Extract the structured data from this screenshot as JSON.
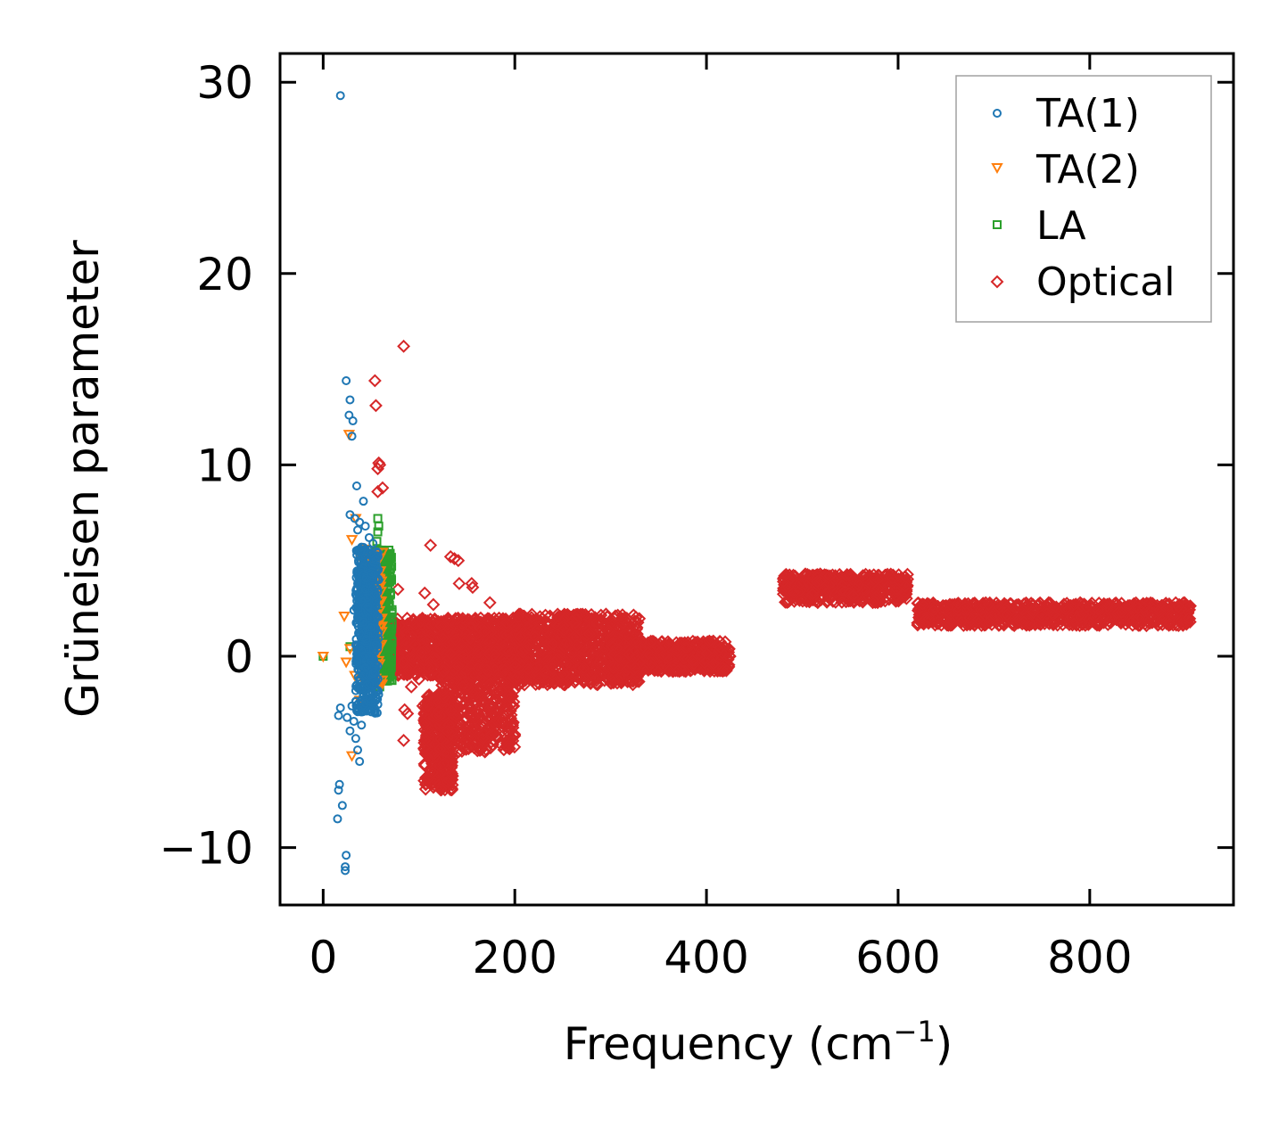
{
  "chart_data": {
    "type": "scatter",
    "title": "",
    "xlabel_main": "Frequency (cm",
    "xlabel_sup": "−1",
    "xlabel_end": ")",
    "ylabel": "Grüneisen parameter",
    "xlim": [
      -45,
      950
    ],
    "ylim": [
      -13,
      31.5
    ],
    "xticks": [
      0,
      200,
      400,
      600,
      800
    ],
    "xtick_labels": [
      "0",
      "200",
      "400",
      "600",
      "800"
    ],
    "yticks": [
      -10,
      0,
      10,
      20,
      30
    ],
    "ytick_labels": [
      "−10",
      "0",
      "10",
      "20",
      "30"
    ],
    "legend_position": "top-right",
    "series": [
      {
        "name": "TA(1)",
        "color": "#1f77b4",
        "marker": "circle",
        "points": [
          [
            18,
            29.3
          ],
          [
            24,
            14.4
          ],
          [
            28,
            13.4
          ],
          [
            27,
            12.6
          ],
          [
            31,
            12.3
          ],
          [
            30,
            11.5
          ],
          [
            35,
            8.9
          ],
          [
            42,
            8.1
          ],
          [
            28,
            7.4
          ],
          [
            33,
            7.2
          ],
          [
            38,
            7.0
          ],
          [
            44,
            6.8
          ],
          [
            36,
            6.6
          ],
          [
            48,
            6.2
          ],
          [
            52,
            5.9
          ],
          [
            40,
            5.7
          ],
          [
            46,
            5.4
          ],
          [
            55,
            5.0
          ],
          [
            42,
            4.6
          ],
          [
            50,
            4.3
          ],
          [
            58,
            4.0
          ],
          [
            36,
            3.8
          ],
          [
            44,
            3.5
          ],
          [
            53,
            3.2
          ],
          [
            40,
            2.9
          ],
          [
            47,
            2.6
          ],
          [
            32,
            2.4
          ],
          [
            56,
            2.1
          ],
          [
            42,
            1.8
          ],
          [
            50,
            1.5
          ],
          [
            38,
            1.2
          ],
          [
            45,
            0.9
          ],
          [
            55,
            0.6
          ],
          [
            40,
            0.3
          ],
          [
            48,
            0.0
          ],
          [
            36,
            -0.3
          ],
          [
            44,
            -0.6
          ],
          [
            52,
            -0.9
          ],
          [
            38,
            -1.2
          ],
          [
            46,
            -1.5
          ],
          [
            34,
            -1.8
          ],
          [
            42,
            -2.1
          ],
          [
            50,
            -2.4
          ],
          [
            30,
            -2.6
          ],
          [
            18,
            -2.7
          ],
          [
            36,
            -2.9
          ],
          [
            16,
            -3.1
          ],
          [
            25,
            -3.2
          ],
          [
            32,
            -3.4
          ],
          [
            40,
            -3.6
          ],
          [
            28,
            -3.9
          ],
          [
            34,
            -4.3
          ],
          [
            36,
            -4.9
          ],
          [
            38,
            -5.5
          ],
          [
            17,
            -6.7
          ],
          [
            16,
            -7.0
          ],
          [
            20,
            -7.8
          ],
          [
            15,
            -8.5
          ],
          [
            24,
            -10.4
          ],
          [
            23,
            -11.0
          ],
          [
            23,
            -11.2
          ]
        ],
        "bands": [
          {
            "f": [
              34,
              58
            ],
            "g": [
              -3.0,
              5.8
            ],
            "n": 380
          },
          {
            "f": [
              36,
              54
            ],
            "g": [
              -1.0,
              4.5
            ],
            "n": 260
          }
        ]
      },
      {
        "name": "TA(2)",
        "color": "#ff7f0e",
        "marker": "triangle-down",
        "points": [
          [
            0,
            0.0
          ],
          [
            27,
            11.6
          ],
          [
            30,
            6.1
          ],
          [
            34,
            7.2
          ],
          [
            22,
            2.1
          ],
          [
            24,
            -0.3
          ],
          [
            28,
            0.4
          ],
          [
            33,
            -1.0
          ],
          [
            38,
            -2.3
          ],
          [
            30,
            -5.2
          ],
          [
            44,
            5.6
          ],
          [
            50,
            4.9
          ],
          [
            56,
            3.4
          ],
          [
            60,
            1.9
          ],
          [
            58,
            0.5
          ],
          [
            54,
            -0.8
          ]
        ],
        "bands": [
          {
            "f": [
              40,
              62
            ],
            "g": [
              -1.5,
              5.5
            ],
            "n": 140
          }
        ]
      },
      {
        "name": "LA",
        "color": "#2ca02c",
        "marker": "square",
        "points": [
          [
            0,
            0.0
          ],
          [
            28,
            0.5
          ],
          [
            57,
            7.2
          ],
          [
            58,
            6.8
          ],
          [
            57,
            6.5
          ],
          [
            56,
            6.0
          ],
          [
            55,
            5.5
          ],
          [
            60,
            -1.2
          ],
          [
            59,
            -1.6
          ]
        ],
        "bands": [
          {
            "f": [
              52,
              72
            ],
            "g": [
              -1.3,
              5.6
            ],
            "n": 320
          }
        ]
      },
      {
        "name": "Optical",
        "color": "#d62728",
        "marker": "diamond",
        "points": [
          [
            84,
            16.2
          ],
          [
            54,
            14.4
          ],
          [
            55,
            13.1
          ],
          [
            58,
            10.1
          ],
          [
            59,
            10.0
          ],
          [
            57,
            9.8
          ],
          [
            62,
            8.8
          ],
          [
            57,
            8.6
          ],
          [
            112,
            5.8
          ],
          [
            133,
            5.2
          ],
          [
            137,
            5.1
          ],
          [
            141,
            5.0
          ],
          [
            155,
            3.8
          ],
          [
            156,
            3.6
          ],
          [
            78,
            3.5
          ],
          [
            142,
            3.8
          ],
          [
            106,
            3.3
          ],
          [
            174,
            2.8
          ],
          [
            115,
            2.7
          ],
          [
            85,
            -2.8
          ],
          [
            88,
            -3.0
          ],
          [
            84,
            -4.4
          ],
          [
            106,
            -3.5
          ],
          [
            118,
            -3.1
          ],
          [
            120,
            -2.9
          ],
          [
            100,
            -1.2
          ],
          [
            92,
            -1.6
          ],
          [
            104,
            -2.6
          ],
          [
            110,
            -0.6
          ],
          [
            126,
            -0.8
          ]
        ],
        "bands": [
          {
            "f": [
              62,
              215
            ],
            "g": [
              -1.0,
              2.0
            ],
            "n": 1100
          },
          {
            "f": [
              105,
              135
            ],
            "g": [
              -7.0,
              -2.0
            ],
            "n": 380
          },
          {
            "f": [
              120,
              200
            ],
            "g": [
              -5.0,
              -0.5
            ],
            "n": 500
          },
          {
            "f": [
              200,
              330
            ],
            "g": [
              -1.5,
              2.2
            ],
            "n": 850
          },
          {
            "f": [
              250,
              265
            ],
            "g": [
              0.5,
              2.2
            ],
            "n": 120
          },
          {
            "f": [
              300,
              425
            ],
            "g": [
              -0.8,
              0.8
            ],
            "n": 600
          },
          {
            "f": [
              480,
              610
            ],
            "g": [
              2.8,
              4.3
            ],
            "n": 500
          },
          {
            "f": [
              620,
              905
            ],
            "g": [
              1.6,
              2.8
            ],
            "n": 900
          }
        ]
      }
    ]
  }
}
